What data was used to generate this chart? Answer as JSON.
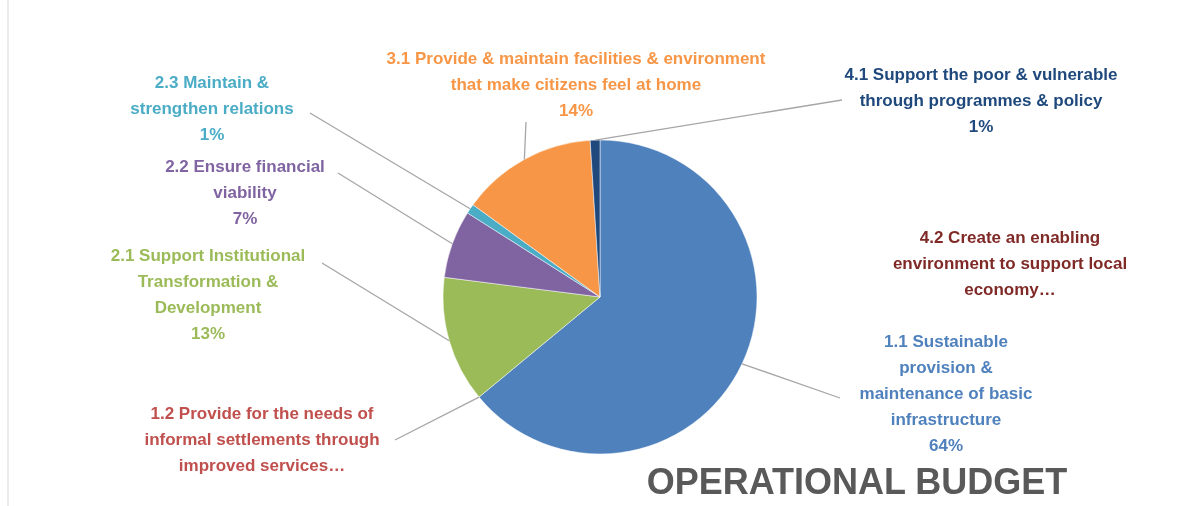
{
  "chart_data": {
    "type": "pie",
    "title": "OPERATIONAL BUDGET",
    "categories": [
      "1.1 Sustainable provision & maintenance of basic infrastructure",
      "1.2 Provide for the needs of informal settlements through improved services…",
      "2.1 Support Institutional Transformation & Development",
      "2.2 Ensure financial viability",
      "2.3 Maintain & strengthen relations",
      "3.1 Provide & maintain facilities & environment that make citizens feel at home",
      "4.1 Support the poor & vulnerable through programmes & policy",
      "4.2 Create an enabling environment to support local economy…"
    ],
    "values": [
      64,
      0,
      13,
      7,
      1,
      14,
      1,
      0
    ],
    "value_labels": [
      "64%",
      null,
      "13%",
      "7%",
      "1%",
      "14%",
      "1%",
      null
    ],
    "colors": [
      "#4f81bd",
      "#c0504d",
      "#9bbb59",
      "#8064a2",
      "#4bacc6",
      "#f79646",
      "#1f497d",
      "#7f2a27"
    ]
  }
}
